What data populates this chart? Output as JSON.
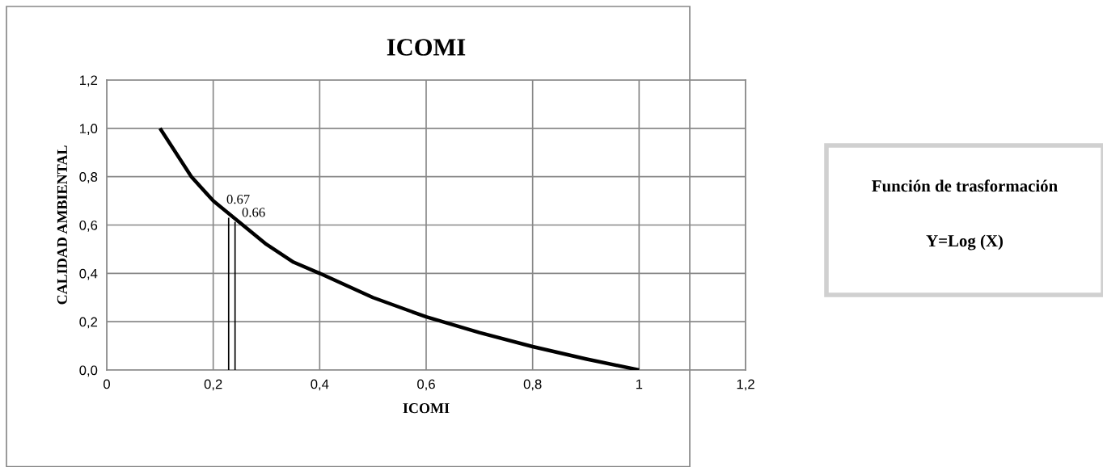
{
  "chart_data": {
    "type": "line",
    "title": "ICOMI",
    "xlabel": "ICOMI",
    "ylabel": "CALIDAD AMBIENTAL",
    "xlim": [
      0,
      1.2
    ],
    "ylim": [
      0,
      1.2
    ],
    "xticks": [
      0,
      {
        "value": 0.2,
        "label": "0,2"
      },
      {
        "value": 0.4,
        "label": "0,4"
      },
      {
        "value": 0.6,
        "label": "0,6"
      },
      {
        "value": 0.8,
        "label": "0,8"
      },
      1,
      {
        "value": 1.2,
        "label": "1,2"
      }
    ],
    "yticks": [
      {
        "value": 0,
        "label": "0,0"
      },
      {
        "value": 0.2,
        "label": "0,2"
      },
      {
        "value": 0.4,
        "label": "0,4"
      },
      {
        "value": 0.6,
        "label": "0,6"
      },
      {
        "value": 0.8,
        "label": "0,8"
      },
      {
        "value": 1.0,
        "label": "1,0"
      },
      {
        "value": 1.2,
        "label": "1,2"
      }
    ],
    "grid": true,
    "series": [
      {
        "color": "#000000",
        "x": [
          0.1,
          0.159,
          0.2,
          0.25,
          0.3,
          0.351,
          0.4,
          0.5,
          0.6,
          0.7,
          0.8,
          0.9,
          1.0
        ],
        "values": [
          1.0,
          0.8,
          0.7,
          0.61,
          0.52,
          0.446,
          0.4,
          0.3,
          0.22,
          0.155,
          0.097,
          0.046,
          0.0
        ]
      },
      {
        "color": "#000000",
        "x": [
          0.229,
          0.229
        ],
        "values": [
          0,
          0.63
        ]
      },
      {
        "color": "#000000",
        "x": [
          0.241,
          0.241
        ],
        "values": [
          0,
          0.613
        ]
      }
    ],
    "annotations": [
      "Función de trasformación",
      "Y=Log (X)",
      {
        "text": "0.67",
        "x": 0.229,
        "y": 0.63
      },
      {
        "text": "0.66",
        "x": 0.241,
        "y": 0.613
      }
    ]
  }
}
